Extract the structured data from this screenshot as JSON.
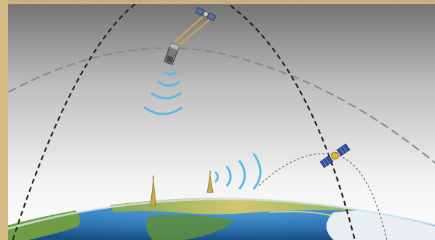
{
  "scene": {
    "frame_color": "#d6bb84",
    "sky_top": "#6f6f6f",
    "sky_mid": "#bdbdbd",
    "sky_bottom": "#f2f2f2",
    "orbit_color_major": "#1e1e1e",
    "orbit_color_minor": "#8a8a8a",
    "signal_color": "#58b9e6",
    "earth_ocean": "#2f78b8",
    "earth_land": "#7fa84a",
    "earth_ice": "#e9eef2"
  },
  "elements": {
    "satellite_top_icon": "satellite-icon",
    "satellite_right_icon": "satellite-icon",
    "probe_icon": "spacecraft-icon",
    "antenna_left_icon": "ground-antenna-icon",
    "antenna_mid_icon": "ground-antenna-icon"
  }
}
